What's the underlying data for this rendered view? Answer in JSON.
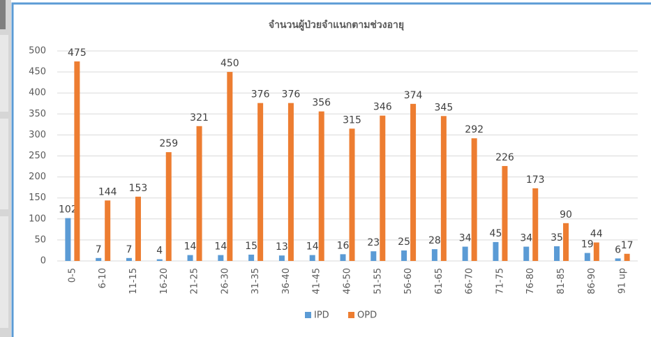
{
  "chart_data": {
    "type": "bar",
    "title": "จำนวนผู้ป่วยจำแนกตามช่วงอายุ",
    "categories": [
      "0-5",
      "6-10",
      "11-15",
      "16-20",
      "21-25",
      "26-30",
      "31-35",
      "36-40",
      "41-45",
      "46-50",
      "51-55",
      "56-60",
      "61-65",
      "66-70",
      "71-75",
      "76-80",
      "81-85",
      "86-90",
      "91 up"
    ],
    "series": [
      {
        "name": "IPD",
        "color": "#5b9bd5",
        "values": [
          102,
          7,
          7,
          4,
          14,
          14,
          15,
          13,
          14,
          16,
          23,
          25,
          28,
          34,
          45,
          34,
          35,
          19,
          6
        ]
      },
      {
        "name": "OPD",
        "color": "#ed7d31",
        "values": [
          475,
          144,
          153,
          259,
          321,
          450,
          376,
          376,
          356,
          315,
          346,
          374,
          345,
          292,
          226,
          173,
          90,
          44,
          17
        ]
      }
    ],
    "ylim": [
      0,
      500
    ],
    "yticks": [
      0,
      50,
      100,
      150,
      200,
      250,
      300,
      350,
      400,
      450,
      500
    ],
    "grid": true,
    "legend": "bottom",
    "data_labels": true
  }
}
